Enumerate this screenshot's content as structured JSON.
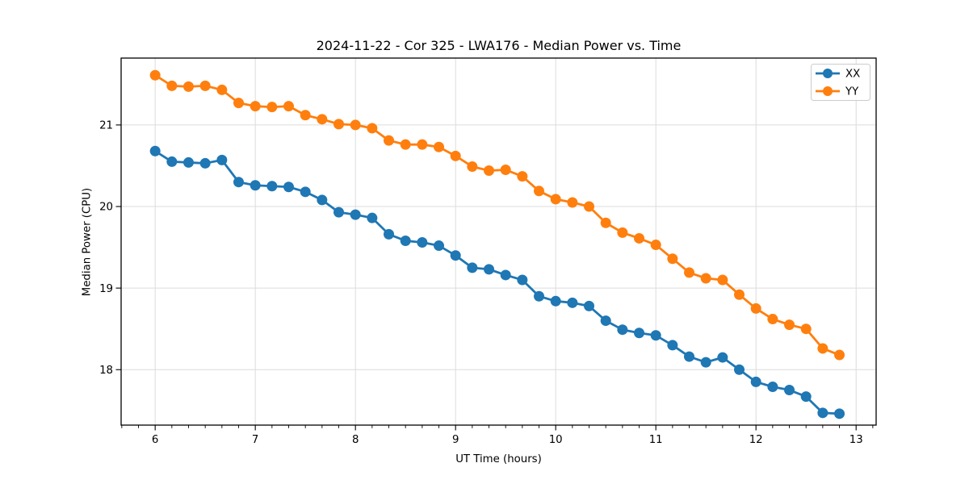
{
  "chart_data": {
    "type": "line",
    "title": "2024-11-22 - Cor 325 - LWA176 - Median Power vs. Time",
    "xlabel": "UT Time (hours)",
    "ylabel": "Median Power (CPU)",
    "xlim": [
      5.66,
      13.2
    ],
    "ylim": [
      17.32,
      21.82
    ],
    "xticks": [
      6,
      7,
      8,
      9,
      10,
      11,
      12,
      13
    ],
    "yticks": [
      18,
      19,
      20,
      21
    ],
    "minor_xtick_step_hours": 0.1667,
    "grid": true,
    "grid_color": "#dcdcdc",
    "legend_position": "upper right",
    "marker": "circle",
    "x": [
      6.0,
      6.1667,
      6.3333,
      6.5,
      6.6667,
      6.8333,
      7.0,
      7.1667,
      7.3333,
      7.5,
      7.6667,
      7.8333,
      8.0,
      8.1667,
      8.3333,
      8.5,
      8.6667,
      8.8333,
      9.0,
      9.1667,
      9.3333,
      9.5,
      9.6667,
      9.8333,
      10.0,
      10.1667,
      10.3333,
      10.5,
      10.6667,
      10.8333,
      11.0,
      11.1667,
      11.3333,
      11.5,
      11.6667,
      11.8333,
      12.0,
      12.1667,
      12.3333,
      12.5,
      12.6667,
      12.8333
    ],
    "series": [
      {
        "name": "XX",
        "color": "#1f77b4",
        "values": [
          20.68,
          20.55,
          20.54,
          20.53,
          20.57,
          20.3,
          20.26,
          20.25,
          20.24,
          20.18,
          20.08,
          19.93,
          19.9,
          19.86,
          19.66,
          19.58,
          19.56,
          19.52,
          19.4,
          19.25,
          19.23,
          19.16,
          19.1,
          18.9,
          18.84,
          18.82,
          18.78,
          18.6,
          18.49,
          18.45,
          18.42,
          18.3,
          18.16,
          18.09,
          18.15,
          18.0,
          17.85,
          17.79,
          17.75,
          17.67,
          17.47,
          17.46
        ]
      },
      {
        "name": "YY",
        "color": "#ff7f0e",
        "values": [
          21.61,
          21.48,
          21.47,
          21.48,
          21.43,
          21.27,
          21.23,
          21.22,
          21.23,
          21.12,
          21.07,
          21.01,
          21.0,
          20.96,
          20.81,
          20.76,
          20.76,
          20.73,
          20.62,
          20.49,
          20.44,
          20.45,
          20.37,
          20.19,
          20.09,
          20.05,
          20.0,
          19.8,
          19.68,
          19.61,
          19.53,
          19.36,
          19.19,
          19.12,
          19.1,
          18.92,
          18.75,
          18.62,
          18.55,
          18.5,
          18.26,
          18.18
        ]
      }
    ]
  }
}
